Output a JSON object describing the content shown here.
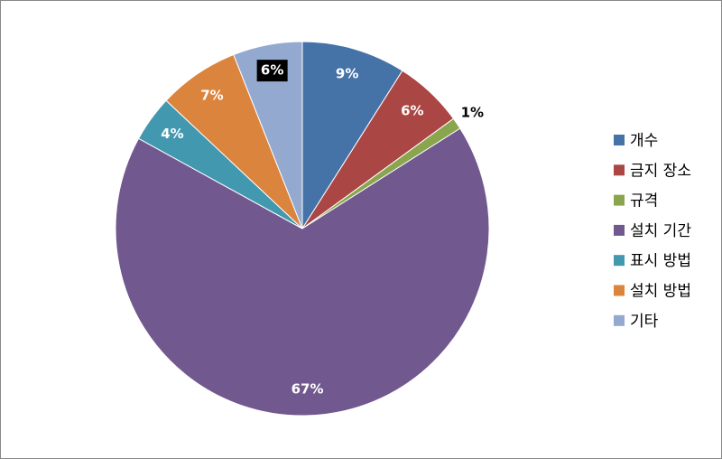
{
  "chart_data": {
    "type": "pie",
    "categories": [
      "개수",
      "금지 장소",
      "규격",
      "설치 기간",
      "표시 방법",
      "설치 방법",
      "기타"
    ],
    "values": [
      9,
      6,
      1,
      67,
      4,
      7,
      6
    ],
    "value_labels": [
      "9%",
      "6%",
      "1%",
      "67%",
      "4%",
      "7%",
      "6%"
    ],
    "colors": [
      "#4572a7",
      "#aa4643",
      "#89a54e",
      "#71588f",
      "#4198af",
      "#db843d",
      "#93a9cf"
    ],
    "legend": "right"
  }
}
